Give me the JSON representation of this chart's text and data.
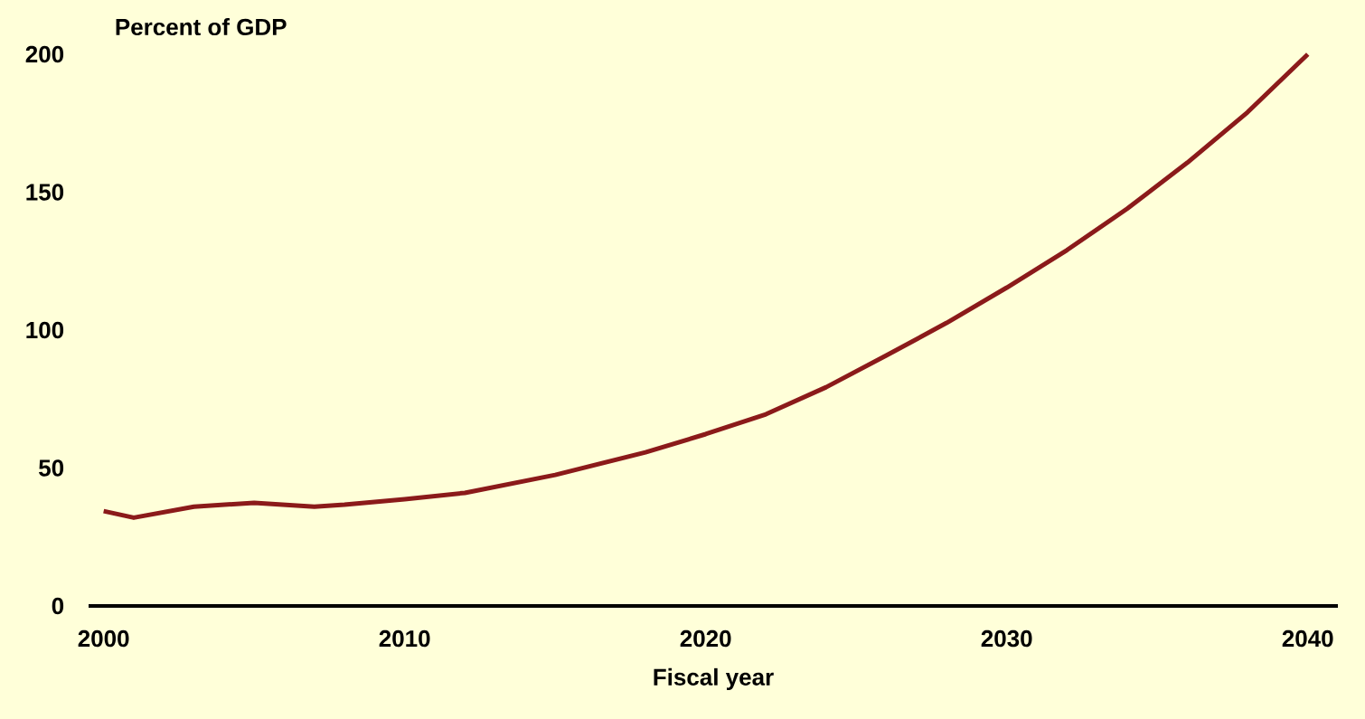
{
  "chart_data": {
    "type": "line",
    "ylabel": "Percent of GDP",
    "xlabel": "Fiscal year",
    "x": [
      2000,
      2001,
      2003,
      2005,
      2007,
      2008,
      2010,
      2012,
      2015,
      2018,
      2020,
      2022,
      2024,
      2026,
      2028,
      2030,
      2032,
      2034,
      2036,
      2038,
      2040
    ],
    "values": [
      34.4,
      32,
      36,
      37.4,
      36,
      36.7,
      38.7,
      41,
      47.5,
      55.7,
      62.3,
      69.5,
      79.3,
      90.8,
      102.6,
      115.4,
      129,
      144,
      160.7,
      179,
      200
    ],
    "color": "#8b1a1a",
    "xlim": [
      1999.5,
      2041
    ],
    "ylim": [
      0,
      200
    ],
    "xticks": [
      2000,
      2010,
      2020,
      2030,
      2040
    ],
    "yticks": [
      0,
      50,
      100,
      150,
      200
    ]
  }
}
